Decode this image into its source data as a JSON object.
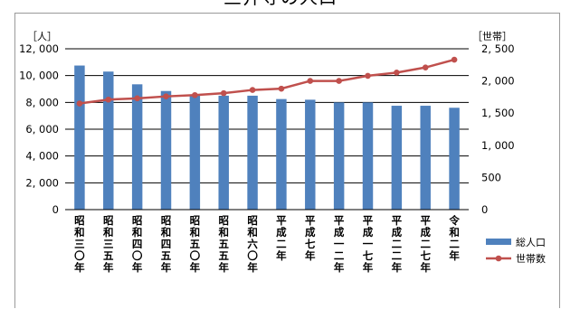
{
  "chart_data": {
    "type": "bar",
    "title": "三井寺の人口",
    "left_unit": "［人］",
    "right_unit": "［世帯］",
    "categories": [
      "昭和三〇年",
      "昭和三五年",
      "昭和四〇年",
      "昭和四五年",
      "昭和五〇年",
      "昭和五五年",
      "昭和六〇年",
      "平成二年",
      "平成七年",
      "平成一二年",
      "平成一七年",
      "平成二二年",
      "平成二七年",
      "令和二年"
    ],
    "series": [
      {
        "name": "総人口",
        "type": "bar",
        "axis": "left",
        "color": "#4f81bd",
        "values": [
          10750,
          10300,
          9350,
          8850,
          8550,
          8500,
          8500,
          8250,
          8200,
          8000,
          8000,
          7750,
          7750,
          7600
        ]
      },
      {
        "name": "世帯数",
        "type": "line",
        "axis": "right",
        "color": "#c0504d",
        "values": [
          1650,
          1710,
          1730,
          1760,
          1780,
          1810,
          1860,
          1880,
          2000,
          2000,
          2080,
          2130,
          2210,
          2330
        ]
      }
    ],
    "ylim_left": [
      0,
      12000
    ],
    "ylim_right": [
      0,
      2500
    ],
    "yticks_left": [
      "0",
      "2, 000",
      "4, 000",
      "6, 000",
      "8, 000",
      "10, 000",
      "12, 000"
    ],
    "yticks_right": [
      "0",
      "500",
      "1, 000",
      "1, 500",
      "2, 000",
      "2, 500"
    ],
    "grid": true,
    "legend_position": "right"
  }
}
